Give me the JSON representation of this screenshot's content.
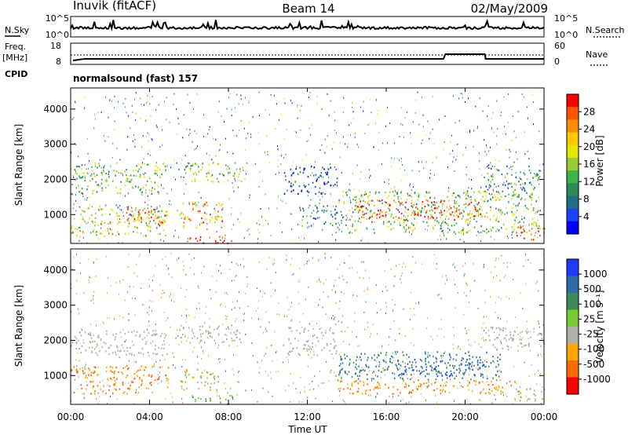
{
  "header": {
    "station": "Inuvik (fitACF)",
    "beam": "Beam 14",
    "date": "02/May/2009"
  },
  "noise_panel": {
    "left_label": "N.Sky",
    "right_label": "N.Search",
    "left_ticks": [
      "10^5",
      "10^0"
    ],
    "right_ticks": [
      "10^5",
      "10^0"
    ]
  },
  "freq_panel": {
    "left_label_1": "Freq.",
    "left_label_2": "[MHz]",
    "left_ticks": [
      "18",
      "8"
    ],
    "right_label": "Nave",
    "right_ticks": [
      "60",
      "0"
    ],
    "cpid_label": "CPID",
    "cpid_text": "normalsound (fast) 157"
  },
  "chart_data": [
    {
      "type": "heatmap",
      "name_shown": "Power",
      "ylabel": "Slant Range [km]",
      "y_ticks": [
        "4000",
        "3000",
        "2000",
        "1000"
      ],
      "y_tick_values": [
        4000,
        3000,
        2000,
        1000
      ],
      "ylim": [
        180,
        4600
      ],
      "xlim_hours": [
        0,
        24
      ],
      "colorbar_label": "Power [dB]",
      "colorbar_ticks": [
        "28",
        "24",
        "20",
        "16",
        "12",
        "8",
        "4"
      ],
      "colorbar_colors": [
        "#ff0000",
        "#ff5500",
        "#ff8c00",
        "#ffc800",
        "#e6e600",
        "#99cc33",
        "#3cb44b",
        "#2e8b57",
        "#1f6f8b",
        "#1e3fff",
        "#0000ff"
      ],
      "regions": [
        {
          "x": [
            0.0,
            4.9
          ],
          "y": [
            400,
            1300
          ],
          "level": 0.55
        },
        {
          "x": [
            2.8,
            4.8
          ],
          "y": [
            700,
            1200
          ],
          "level": 0.95
        },
        {
          "x": [
            0.0,
            4.8
          ],
          "y": [
            1600,
            2500
          ],
          "level": 0.45
        },
        {
          "x": [
            5.5,
            7.8
          ],
          "y": [
            600,
            1400
          ],
          "level": 0.75
        },
        {
          "x": [
            6.0,
            8.2
          ],
          "y": [
            200,
            450
          ],
          "level": 0.95
        },
        {
          "x": [
            5.7,
            8.8
          ],
          "y": [
            1950,
            2500
          ],
          "level": 0.5
        },
        {
          "x": [
            10.8,
            13.5
          ],
          "y": [
            1600,
            2400
          ],
          "level": 0.12
        },
        {
          "x": [
            11.5,
            13.5
          ],
          "y": [
            700,
            1300
          ],
          "level": 0.3
        },
        {
          "x": [
            13.5,
            23.8
          ],
          "y": [
            500,
            1700
          ],
          "level": 0.45
        },
        {
          "x": [
            14.5,
            21.0
          ],
          "y": [
            850,
            1450
          ],
          "level": 0.9
        },
        {
          "x": [
            20.8,
            23.8
          ],
          "y": [
            1700,
            2400
          ],
          "level": 0.3
        },
        {
          "x": [
            22.5,
            24.0
          ],
          "y": [
            300,
            700
          ],
          "level": 0.9
        }
      ]
    },
    {
      "type": "heatmap",
      "name_shown": "Velocity",
      "ylabel": "Slant Range [km]",
      "y_ticks": [
        "4000",
        "3000",
        "2000",
        "1000"
      ],
      "y_tick_values": [
        4000,
        3000,
        2000,
        1000
      ],
      "ylim": [
        180,
        4600
      ],
      "xlim_hours": [
        0,
        24
      ],
      "x_ticks": [
        "00:00",
        "04:00",
        "08:00",
        "12:00",
        "16:00",
        "20:00",
        "00:00"
      ],
      "x_tick_values": [
        0,
        4,
        8,
        12,
        16,
        20,
        24
      ],
      "xlabel": "Time UT",
      "colorbar_label": "Velocity [m s⁻¹]",
      "colorbar_ticks": [
        "1000",
        "500",
        "100",
        "25",
        "-25",
        "-100",
        "-500",
        "-1000"
      ],
      "colorbar_colors": [
        "#1e3cff",
        "#2e6ba8",
        "#3b8c5a",
        "#77cc33",
        "#b0b0a8",
        "#ffa500",
        "#ff6a00",
        "#ff0000"
      ],
      "regions": [
        {
          "x": [
            0.0,
            5.0
          ],
          "y": [
            500,
            1300
          ],
          "cls": "neg_med"
        },
        {
          "x": [
            0.0,
            4.8
          ],
          "y": [
            1600,
            2300
          ],
          "cls": "gray"
        },
        {
          "x": [
            5.5,
            8.6
          ],
          "y": [
            1950,
            2450
          ],
          "cls": "gray"
        },
        {
          "x": [
            5.5,
            7.5
          ],
          "y": [
            600,
            1200
          ],
          "cls": "neg_low"
        },
        {
          "x": [
            6.0,
            8.2
          ],
          "y": [
            200,
            450
          ],
          "cls": "pos_low"
        },
        {
          "x": [
            11.0,
            13.5
          ],
          "y": [
            1600,
            2400
          ],
          "cls": "gray"
        },
        {
          "x": [
            13.5,
            21.8
          ],
          "y": [
            900,
            1700
          ],
          "cls": "pos_med"
        },
        {
          "x": [
            16.5,
            21.0
          ],
          "y": [
            1000,
            1500
          ],
          "cls": "pos_high"
        },
        {
          "x": [
            13.5,
            22.5
          ],
          "y": [
            500,
            900
          ],
          "cls": "neg_med"
        },
        {
          "x": [
            21.0,
            24.0
          ],
          "y": [
            1700,
            2400
          ],
          "cls": "gray"
        },
        {
          "x": [
            22.5,
            24.0
          ],
          "y": [
            300,
            700
          ],
          "cls": "neg_low"
        }
      ]
    }
  ]
}
